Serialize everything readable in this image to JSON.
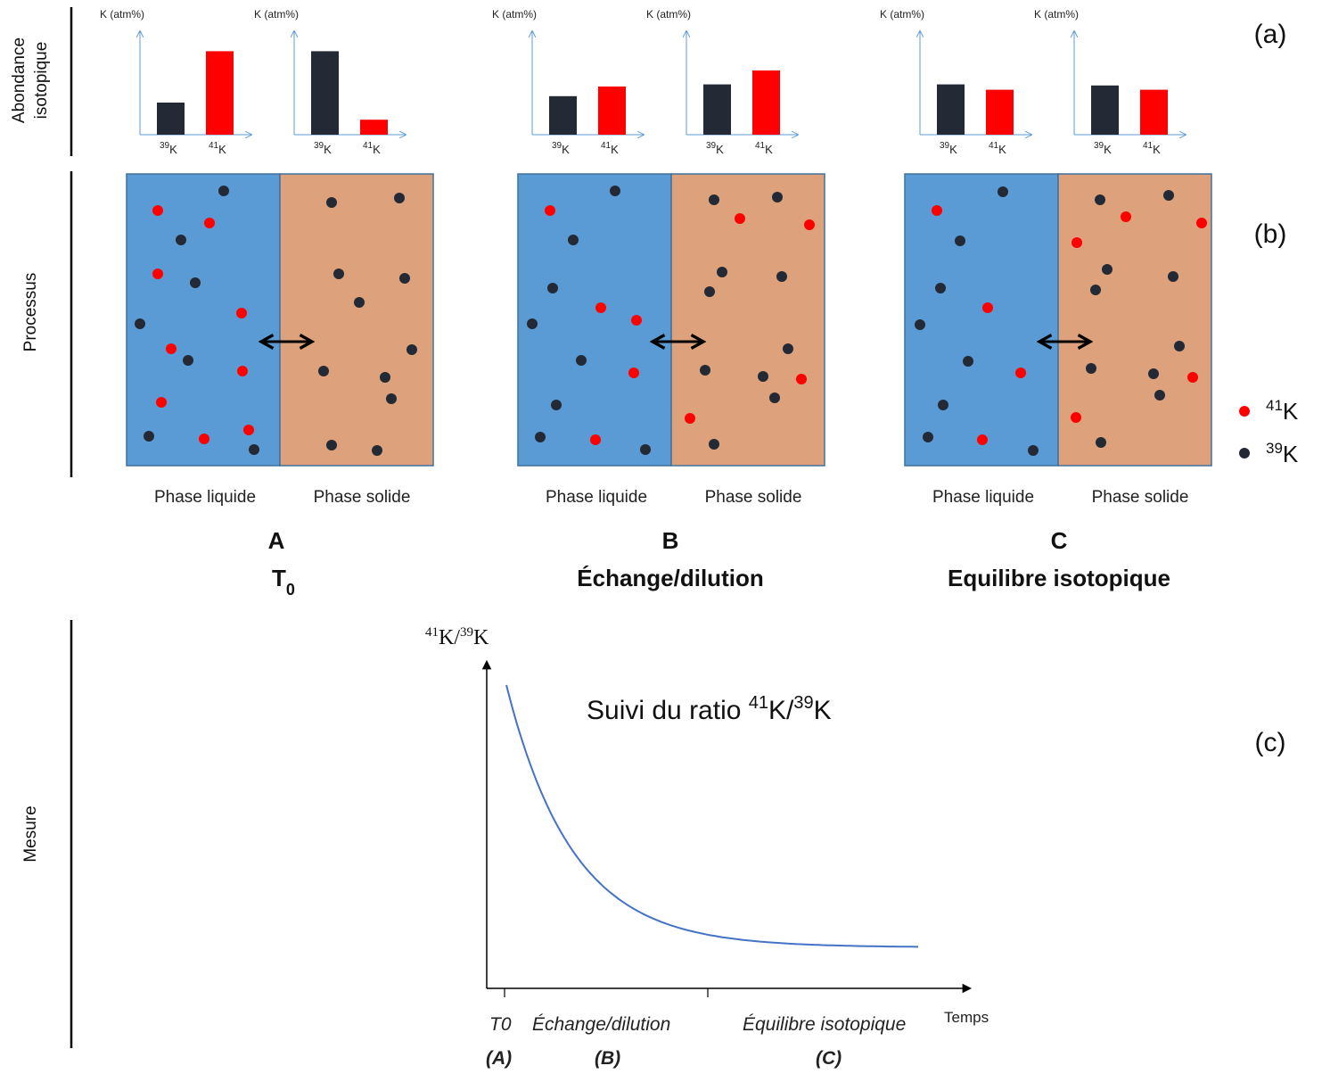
{
  "rows": {
    "a_label_line1": "Abondance",
    "a_label_line2": "isotopique",
    "b_label": "Processus",
    "c_label": "Mesure"
  },
  "panel_letters": {
    "a": "(a)",
    "b": "(b)",
    "c": "(c)"
  },
  "bar_axis_label": "K (atm%)",
  "isotopes": {
    "k39": {
      "mass": "39",
      "symbol": "K",
      "color": "#232a35"
    },
    "k41": {
      "mass": "41",
      "symbol": "K",
      "color": "#ff0000"
    }
  },
  "bar_charts": [
    {
      "k39": 0.3,
      "k41": 0.78
    },
    {
      "k39": 0.78,
      "k41": 0.14
    },
    {
      "k39": 0.36,
      "k41": 0.45
    },
    {
      "k39": 0.47,
      "k41": 0.6
    },
    {
      "k39": 0.47,
      "k41": 0.42
    },
    {
      "k39": 0.46,
      "k41": 0.42
    }
  ],
  "phases": {
    "liquid": "Phase liquide",
    "solid": "Phase solide",
    "liquid_color": "#5b9bd5",
    "solid_color": "#dda17c"
  },
  "stages": [
    {
      "letter": "A",
      "name": "T",
      "sub": "0"
    },
    {
      "letter": "B",
      "name": "Échange/dilution",
      "sub": ""
    },
    {
      "letter": "C",
      "name": "Equilibre isotopique",
      "sub": ""
    }
  ],
  "graph": {
    "ylabel": "41K/39K",
    "ylabel_sup1": "41",
    "ylabel_mid": "K/",
    "ylabel_sup2": "39",
    "ylabel_end": "K",
    "xlabel": "Temps",
    "title_prefix": "Suivi du ratio ",
    "title_sup1": "41",
    "title_mid": "K/",
    "title_sup2": "39",
    "title_end": "K",
    "curve_color": "#4472c4",
    "ticks": [
      {
        "label": "T0",
        "stage": "(A)"
      },
      {
        "label": "Échange/dilution",
        "stage": "(B)"
      },
      {
        "label": "Équilibre isotopique",
        "stage": "(C)"
      }
    ]
  }
}
